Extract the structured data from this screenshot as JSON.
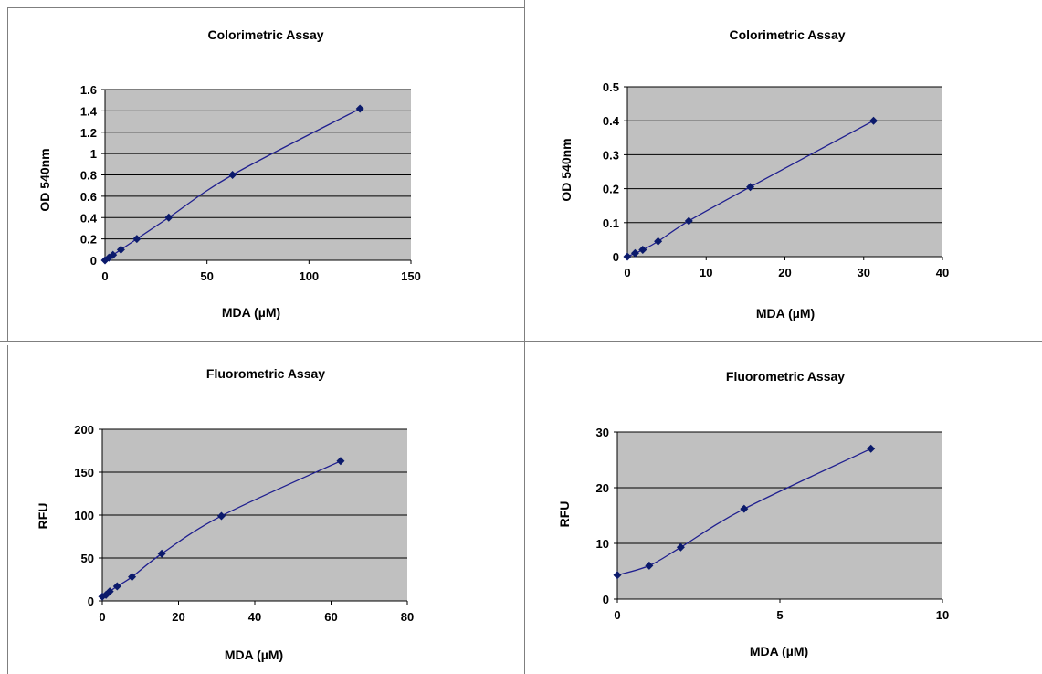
{
  "chart_data": [
    {
      "type": "line",
      "title": "Colorimetric Assay",
      "xlabel": "MDA (µM)",
      "ylabel": "OD 540nm",
      "xlim": [
        0,
        150
      ],
      "ylim": [
        0,
        1.6
      ],
      "xticks": [
        "0",
        "50",
        "100",
        "150"
      ],
      "yticks": [
        "0",
        "0.2",
        "0.4",
        "0.6",
        "0.8",
        "1",
        "1.2",
        "1.4",
        "1.6"
      ],
      "grid": true,
      "series": [
        {
          "x": [
            0,
            1.95,
            3.9,
            7.8,
            15.6,
            31.25,
            62.5,
            125
          ],
          "y": [
            0.0,
            0.025,
            0.05,
            0.1,
            0.2,
            0.4,
            0.8,
            1.42
          ]
        }
      ]
    },
    {
      "type": "line",
      "title": "Colorimetric Assay",
      "xlabel": "MDA (µM)",
      "ylabel": "OD 540nm",
      "xlim": [
        0,
        40
      ],
      "ylim": [
        0,
        0.5
      ],
      "xticks": [
        "0",
        "10",
        "20",
        "30",
        "40"
      ],
      "yticks": [
        "0",
        "0.1",
        "0.2",
        "0.3",
        "0.4",
        "0.5"
      ],
      "grid": true,
      "series": [
        {
          "x": [
            0,
            0.98,
            1.95,
            3.9,
            7.8,
            15.6,
            31.25
          ],
          "y": [
            0.0,
            0.01,
            0.02,
            0.045,
            0.105,
            0.205,
            0.4
          ]
        }
      ]
    },
    {
      "type": "line",
      "title": "Fluorometric Assay",
      "xlabel": "MDA (µM)",
      "ylabel": "RFU",
      "xlim": [
        0,
        80
      ],
      "ylim": [
        0,
        200
      ],
      "xticks": [
        "0",
        "20",
        "40",
        "60",
        "80"
      ],
      "yticks": [
        "0",
        "50",
        "100",
        "150",
        "200"
      ],
      "grid": true,
      "series": [
        {
          "x": [
            0,
            0.98,
            1.95,
            3.9,
            7.8,
            15.6,
            31.25,
            62.5
          ],
          "y": [
            5,
            7,
            11,
            17,
            28,
            55,
            99,
            163
          ]
        }
      ]
    },
    {
      "type": "line",
      "title": "Fluorometric Assay",
      "xlabel": "MDA (µM)",
      "ylabel": "RFU",
      "xlim": [
        0,
        10
      ],
      "ylim": [
        0,
        30
      ],
      "xticks": [
        "0",
        "5",
        "10"
      ],
      "yticks": [
        "0",
        "10",
        "20",
        "30"
      ],
      "grid": true,
      "series": [
        {
          "x": [
            0,
            0.98,
            1.95,
            3.9,
            7.8
          ],
          "y": [
            4.3,
            6.0,
            9.3,
            16.2,
            27.0
          ]
        }
      ]
    }
  ],
  "style": {
    "plot_background": "#c0c0c0",
    "series_color": "#1f1f8f",
    "marker_color": "#0b1a6b",
    "gridline_color": "#000000"
  }
}
